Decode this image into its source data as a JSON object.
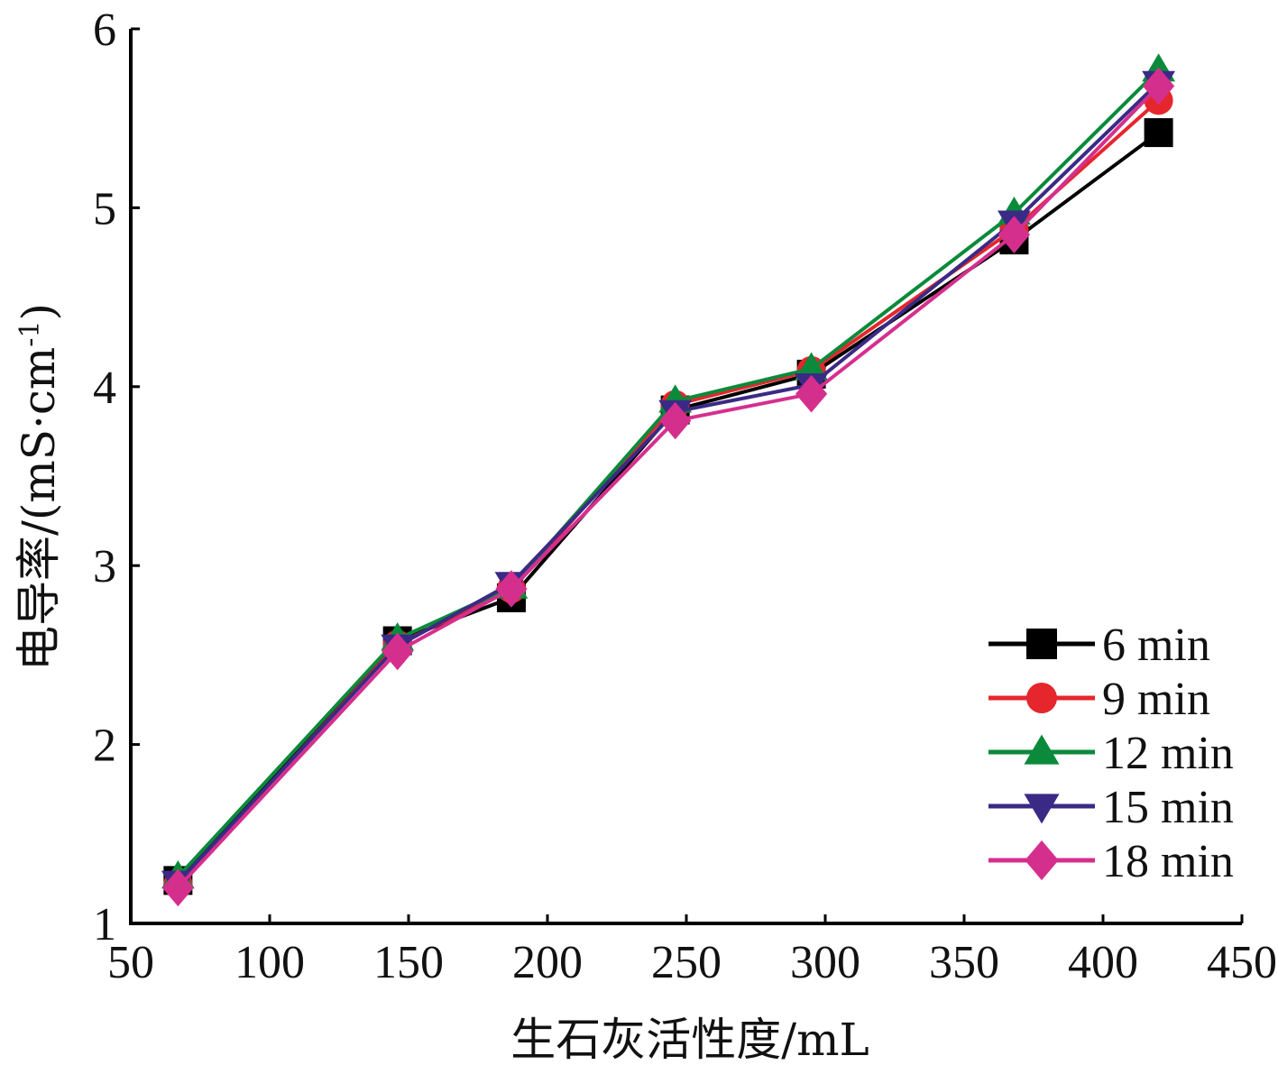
{
  "chart_data": {
    "type": "line",
    "title": "",
    "xlabel": "生石灰活性度/mL",
    "ylabel": "电导率/(mS·cm",
    "ylabel_sup": "-1",
    "ylabel_close": ")",
    "xlim": [
      50,
      450
    ],
    "ylim": [
      1,
      6
    ],
    "xticks": [
      50,
      100,
      150,
      200,
      250,
      300,
      350,
      400,
      450
    ],
    "yticks": [
      1,
      2,
      3,
      4,
      5,
      6
    ],
    "x": [
      67,
      146,
      187,
      246,
      295,
      368,
      420
    ],
    "grid": false,
    "legend_position": "bottom-right",
    "series": [
      {
        "name": "6 min",
        "color": "#000000",
        "marker": "square",
        "values": [
          1.24,
          2.58,
          2.82,
          3.87,
          4.07,
          4.82,
          5.42
        ]
      },
      {
        "name": "9 min",
        "color": "#e5262c",
        "marker": "circle",
        "values": [
          1.22,
          2.56,
          2.87,
          3.9,
          4.09,
          4.88,
          5.6
        ]
      },
      {
        "name": "12 min",
        "color": "#0a8a3a",
        "marker": "triangle-up",
        "values": [
          1.26,
          2.59,
          2.88,
          3.92,
          4.1,
          4.97,
          5.77
        ]
      },
      {
        "name": "15 min",
        "color": "#3b2a85",
        "marker": "triangle-down",
        "values": [
          1.23,
          2.55,
          2.9,
          3.86,
          4.01,
          4.92,
          5.7
        ]
      },
      {
        "name": "18 min",
        "color": "#d52f8e",
        "marker": "diamond",
        "values": [
          1.2,
          2.52,
          2.87,
          3.81,
          3.96,
          4.85,
          5.68
        ]
      }
    ]
  }
}
